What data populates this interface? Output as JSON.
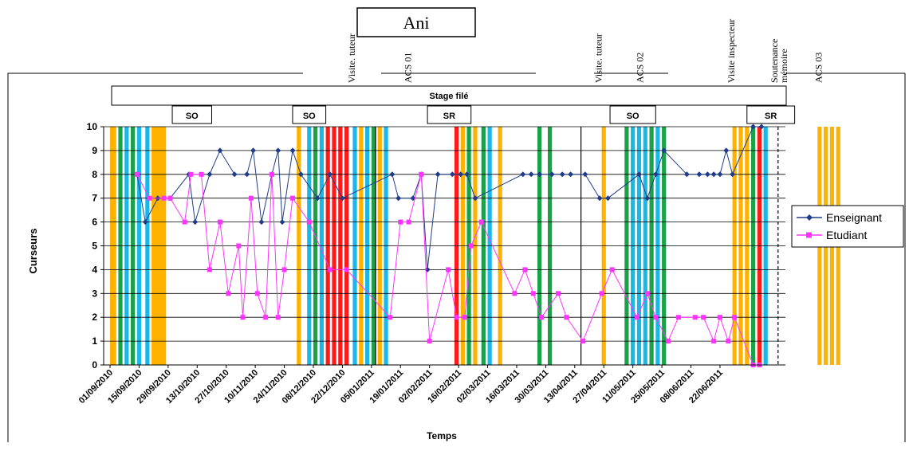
{
  "chart_data": {
    "type": "line",
    "title": "Ani",
    "xlabel": "Temps",
    "ylabel": "Curseurs",
    "ylim": [
      0,
      10
    ],
    "yticks": [
      "0",
      "1",
      "2",
      "3",
      "4",
      "5",
      "6",
      "7",
      "8",
      "9",
      "10"
    ],
    "x_tick_labels": [
      "01/09/2010",
      "15/09/2010",
      "29/09/2010",
      "13/10/2010",
      "27/10/2010",
      "10/11/2010",
      "24/11/2010",
      "08/12/2010",
      "22/12/2010",
      "05/01/2011",
      "19/01/2011",
      "02/02/2011",
      "16/02/2011",
      "02/03/2011",
      "16/03/2011",
      "30/03/2011",
      "13/04/2011",
      "27/04/2011",
      "11/05/2011",
      "25/05/2011",
      "08/06/2011",
      "22/06/2011"
    ],
    "grid": "horizontal",
    "legend": "right",
    "series": [
      {
        "name": "Enseignant",
        "color": "#1f3d8a",
        "marker": "diamond",
        "points": [
          [
            "2010-09-14",
            8
          ],
          [
            "2010-09-18",
            6
          ],
          [
            "2010-09-24",
            7
          ],
          [
            "2010-09-30",
            7
          ],
          [
            "2010-10-09",
            8
          ],
          [
            "2010-10-12",
            6
          ],
          [
            "2010-10-19",
            8
          ],
          [
            "2010-10-24",
            9
          ],
          [
            "2010-10-31",
            8
          ],
          [
            "2010-11-06",
            8
          ],
          [
            "2010-11-09",
            9
          ],
          [
            "2010-11-13",
            6
          ],
          [
            "2010-11-18",
            8
          ],
          [
            "2010-11-21",
            9
          ],
          [
            "2010-11-23",
            6
          ],
          [
            "2010-11-28",
            9
          ],
          [
            "2010-12-02",
            8
          ],
          [
            "2010-12-10",
            7
          ],
          [
            "2010-12-16",
            8
          ],
          [
            "2010-12-22",
            7
          ],
          [
            "2011-01-15",
            8
          ],
          [
            "2011-01-18",
            7
          ],
          [
            "2011-01-25",
            7
          ],
          [
            "2011-01-29",
            8
          ],
          [
            "2011-02-01",
            4
          ],
          [
            "2011-02-06",
            8
          ],
          [
            "2011-02-13",
            8
          ],
          [
            "2011-02-17",
            8
          ],
          [
            "2011-02-20",
            8
          ],
          [
            "2011-02-24",
            7
          ],
          [
            "2011-03-19",
            8
          ],
          [
            "2011-03-23",
            8
          ],
          [
            "2011-03-27",
            8
          ],
          [
            "2011-04-02",
            8
          ],
          [
            "2011-04-07",
            8
          ],
          [
            "2011-04-11",
            8
          ],
          [
            "2011-04-18",
            8
          ],
          [
            "2011-04-25",
            7
          ],
          [
            "2011-04-29",
            7
          ],
          [
            "2011-05-14",
            8
          ],
          [
            "2011-05-18",
            7
          ],
          [
            "2011-05-22",
            8
          ],
          [
            "2011-05-26",
            9
          ],
          [
            "2011-06-06",
            8
          ],
          [
            "2011-06-12",
            8
          ],
          [
            "2011-06-16",
            8
          ],
          [
            "2011-06-19",
            8
          ],
          [
            "2011-06-22",
            8
          ],
          [
            "2011-06-25",
            9
          ],
          [
            "2011-06-28",
            8
          ],
          [
            "2011-07-08",
            10
          ],
          [
            "2011-07-12",
            10
          ]
        ]
      },
      {
        "name": "Etudiant",
        "color": "#ff33ff",
        "marker": "square",
        "points": [
          [
            "2010-09-14",
            8
          ],
          [
            "2010-09-20",
            7
          ],
          [
            "2010-09-27",
            7
          ],
          [
            "2010-09-30",
            7
          ],
          [
            "2010-10-07",
            6
          ],
          [
            "2010-10-10",
            8
          ],
          [
            "2010-10-15",
            8
          ],
          [
            "2010-10-19",
            4
          ],
          [
            "2010-10-24",
            6
          ],
          [
            "2010-10-28",
            3
          ],
          [
            "2010-11-02",
            5
          ],
          [
            "2010-11-04",
            2
          ],
          [
            "2010-11-08",
            7
          ],
          [
            "2010-11-11",
            3
          ],
          [
            "2010-11-15",
            2
          ],
          [
            "2010-11-18",
            8
          ],
          [
            "2010-11-21",
            2
          ],
          [
            "2010-11-24",
            4
          ],
          [
            "2010-11-28",
            7
          ],
          [
            "2010-12-06",
            6
          ],
          [
            "2010-12-16",
            4
          ],
          [
            "2010-12-24",
            4
          ],
          [
            "2011-01-14",
            2
          ],
          [
            "2011-01-19",
            6
          ],
          [
            "2011-01-23",
            6
          ],
          [
            "2011-01-29",
            8
          ],
          [
            "2011-02-02",
            1
          ],
          [
            "2011-02-11",
            4
          ],
          [
            "2011-02-15",
            2
          ],
          [
            "2011-02-19",
            2
          ],
          [
            "2011-02-22",
            5
          ],
          [
            "2011-02-27",
            6
          ],
          [
            "2011-03-15",
            3
          ],
          [
            "2011-03-20",
            4
          ],
          [
            "2011-03-24",
            3
          ],
          [
            "2011-03-28",
            2
          ],
          [
            "2011-04-05",
            3
          ],
          [
            "2011-04-09",
            2
          ],
          [
            "2011-04-17",
            1
          ],
          [
            "2011-04-26",
            3
          ],
          [
            "2011-05-01",
            4
          ],
          [
            "2011-05-13",
            2
          ],
          [
            "2011-05-18",
            3
          ],
          [
            "2011-05-22",
            2
          ],
          [
            "2011-05-28",
            1
          ],
          [
            "2011-06-02",
            2
          ],
          [
            "2011-06-10",
            2
          ],
          [
            "2011-06-14",
            2
          ],
          [
            "2011-06-19",
            1
          ],
          [
            "2011-06-22",
            2
          ],
          [
            "2011-06-26",
            1
          ],
          [
            "2011-06-29",
            2
          ],
          [
            "2011-07-08",
            0
          ],
          [
            "2011-07-11",
            0
          ]
        ]
      }
    ],
    "bands": [
      {
        "start": "2010-09-01",
        "end": "2010-09-04",
        "color": "#ffb300"
      },
      {
        "start": "2010-09-05",
        "end": "2010-09-07",
        "color": "#1aa14a"
      },
      {
        "start": "2010-09-08",
        "end": "2010-09-10",
        "color": "#19b8e6"
      },
      {
        "start": "2010-09-11",
        "end": "2010-09-13",
        "color": "#1aa14a"
      },
      {
        "start": "2010-09-14",
        "end": "2010-09-16",
        "color": "#19b8e6"
      },
      {
        "start": "2010-09-18",
        "end": "2010-09-20",
        "color": "#19b8e6"
      },
      {
        "start": "2010-09-21",
        "end": "2010-09-28",
        "color": "#ffb300"
      },
      {
        "start": "2010-11-30",
        "end": "2010-12-02",
        "color": "#ffb300"
      },
      {
        "start": "2010-12-05",
        "end": "2010-12-07",
        "color": "#19b8e6"
      },
      {
        "start": "2010-12-08",
        "end": "2010-12-10",
        "color": "#1aa14a"
      },
      {
        "start": "2010-12-11",
        "end": "2010-12-13",
        "color": "#19b8e6"
      },
      {
        "start": "2010-12-14",
        "end": "2010-12-16",
        "color": "#ff1a1a"
      },
      {
        "start": "2010-12-17",
        "end": "2010-12-19",
        "color": "#ff1a1a"
      },
      {
        "start": "2010-12-20",
        "end": "2010-12-22",
        "color": "#ff1a1a"
      },
      {
        "start": "2010-12-23",
        "end": "2010-12-25",
        "color": "#ff1a1a"
      },
      {
        "start": "2010-12-27",
        "end": "2010-12-29",
        "color": "#19b8e6"
      },
      {
        "start": "2010-12-30",
        "end": "2011-01-01",
        "color": "#ffb300"
      },
      {
        "start": "2011-01-02",
        "end": "2011-01-04",
        "color": "#19b8e6"
      },
      {
        "start": "2011-01-05",
        "end": "2011-01-07",
        "color": "#1aa14a"
      },
      {
        "start": "2011-01-08",
        "end": "2011-01-10",
        "color": "#ffb300"
      },
      {
        "start": "2011-01-11",
        "end": "2011-01-13",
        "color": "#19b8e6"
      },
      {
        "start": "2011-02-14",
        "end": "2011-02-16",
        "color": "#ff1a1a"
      },
      {
        "start": "2011-02-17",
        "end": "2011-02-19",
        "color": "#ffb300"
      },
      {
        "start": "2011-02-20",
        "end": "2011-02-22",
        "color": "#1aa14a"
      },
      {
        "start": "2011-02-23",
        "end": "2011-02-25",
        "color": "#ffb300"
      },
      {
        "start": "2011-02-27",
        "end": "2011-03-01",
        "color": "#1aa14a"
      },
      {
        "start": "2011-03-02",
        "end": "2011-03-04",
        "color": "#19b8e6"
      },
      {
        "start": "2011-03-07",
        "end": "2011-03-09",
        "color": "#ffb300"
      },
      {
        "start": "2011-03-26",
        "end": "2011-03-28",
        "color": "#1aa14a"
      },
      {
        "start": "2011-03-31",
        "end": "2011-04-02",
        "color": "#1aa14a"
      },
      {
        "start": "2011-04-26",
        "end": "2011-04-28",
        "color": "#ffb300"
      },
      {
        "start": "2011-05-07",
        "end": "2011-05-09",
        "color": "#1aa14a"
      },
      {
        "start": "2011-05-10",
        "end": "2011-05-12",
        "color": "#19b8e6"
      },
      {
        "start": "2011-05-13",
        "end": "2011-05-15",
        "color": "#19b8e6"
      },
      {
        "start": "2011-05-16",
        "end": "2011-05-18",
        "color": "#19b8e6"
      },
      {
        "start": "2011-05-19",
        "end": "2011-05-21",
        "color": "#1aa14a"
      },
      {
        "start": "2011-05-22",
        "end": "2011-05-24",
        "color": "#19b8e6"
      },
      {
        "start": "2011-05-25",
        "end": "2011-05-27",
        "color": "#1aa14a"
      },
      {
        "start": "2011-06-28",
        "end": "2011-06-30",
        "color": "#ffb300"
      },
      {
        "start": "2011-07-01",
        "end": "2011-07-03",
        "color": "#ffb300"
      },
      {
        "start": "2011-07-04",
        "end": "2011-07-06",
        "color": "#ffb300"
      },
      {
        "start": "2011-07-07",
        "end": "2011-07-09",
        "color": "#1aa14a"
      },
      {
        "start": "2011-07-10",
        "end": "2011-07-12",
        "color": "#ff1a1a"
      },
      {
        "start": "2011-07-13",
        "end": "2011-07-15",
        "color": "#19b8e6"
      },
      {
        "start": "2011-08-08",
        "end": "2011-08-10",
        "color": "#ffb300"
      },
      {
        "start": "2011-08-11",
        "end": "2011-08-13",
        "color": "#ffb300"
      },
      {
        "start": "2011-08-14",
        "end": "2011-08-16",
        "color": "#ffb300"
      },
      {
        "start": "2011-08-17",
        "end": "2011-08-19",
        "color": "#ffb300"
      }
    ],
    "phase_bar": {
      "label": "Stage filé"
    },
    "phase_boxes": [
      {
        "label": "SO",
        "start": "2010-10-01",
        "end": "2010-10-20"
      },
      {
        "label": "SO",
        "start": "2010-11-28",
        "end": "2010-12-14"
      },
      {
        "label": "SR",
        "start": "2011-02-01",
        "end": "2011-02-22"
      },
      {
        "label": "SO",
        "start": "2011-04-30",
        "end": "2011-05-22"
      },
      {
        "label": "SR",
        "start": "2011-07-05",
        "end": "2011-07-28"
      }
    ],
    "event_labels": [
      {
        "label": "Visite. tuteur",
        "date": "2010-12-28"
      },
      {
        "label": "ACS 01",
        "date": "2011-01-24"
      },
      {
        "label": "Visite. tuteur",
        "date": "2011-04-26"
      },
      {
        "label": "ACS 02",
        "date": "2011-05-16"
      },
      {
        "label": "Visite inspecteur",
        "date": "2011-06-29"
      },
      {
        "label": "Soutenance mémoire",
        "date": "2011-07-22"
      },
      {
        "label": "ACS 03",
        "date": "2011-08-10"
      }
    ],
    "vertical_marker_lines": [
      {
        "date": "2011-01-07",
        "style": "solid"
      },
      {
        "date": "2011-04-16",
        "style": "solid"
      },
      {
        "date": "2011-07-20",
        "style": "dashed"
      }
    ]
  }
}
